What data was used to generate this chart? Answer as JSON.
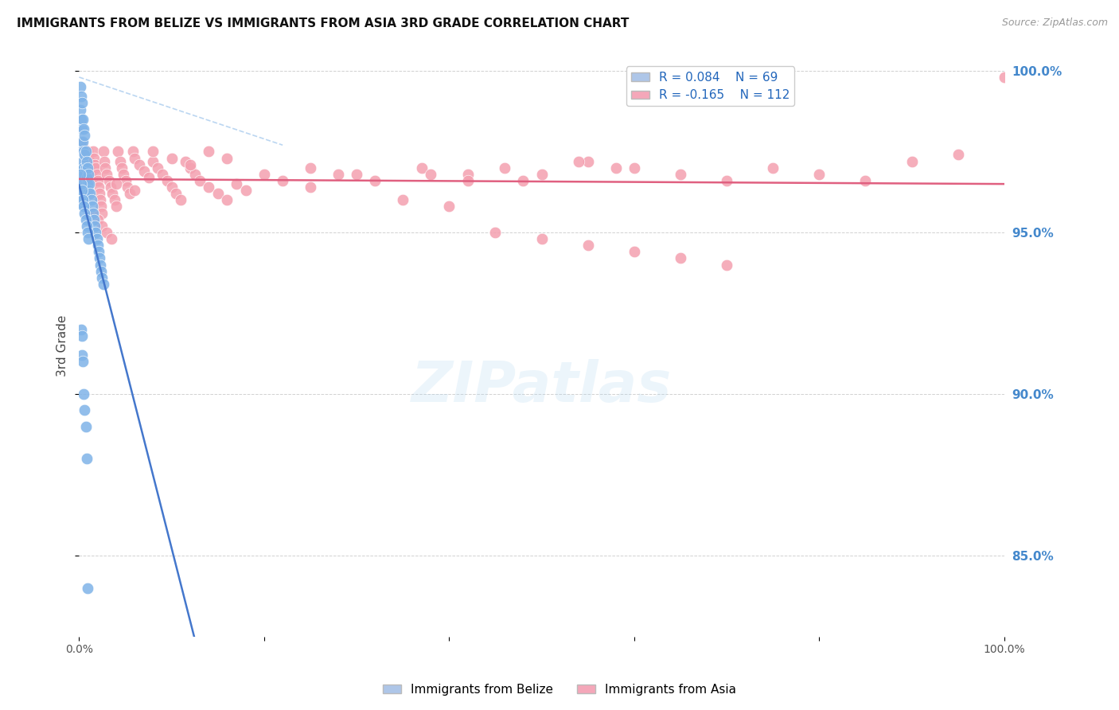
{
  "title": "IMMIGRANTS FROM BELIZE VS IMMIGRANTS FROM ASIA 3RD GRADE CORRELATION CHART",
  "source": "Source: ZipAtlas.com",
  "ylabel": "3rd Grade",
  "right_yticks": [
    "85.0%",
    "90.0%",
    "95.0%",
    "100.0%"
  ],
  "right_ytick_vals": [
    0.85,
    0.9,
    0.95,
    1.0
  ],
  "belize_color": "#7fb3e8",
  "asia_color": "#f4a0b0",
  "belize_trend_color": "#4477cc",
  "asia_trend_color": "#e06080",
  "dash_color": "#aaccee",
  "watermark": "ZIPatlas",
  "belize_x": [
    0.001,
    0.001,
    0.002,
    0.002,
    0.002,
    0.002,
    0.003,
    0.003,
    0.003,
    0.003,
    0.003,
    0.004,
    0.004,
    0.004,
    0.004,
    0.004,
    0.005,
    0.005,
    0.005,
    0.005,
    0.005,
    0.006,
    0.006,
    0.006,
    0.006,
    0.007,
    0.007,
    0.007,
    0.008,
    0.008,
    0.009,
    0.009,
    0.01,
    0.01,
    0.011,
    0.012,
    0.013,
    0.014,
    0.015,
    0.016,
    0.017,
    0.018,
    0.019,
    0.02,
    0.021,
    0.022,
    0.023,
    0.024,
    0.025,
    0.026,
    0.001,
    0.002,
    0.003,
    0.004,
    0.005,
    0.006,
    0.007,
    0.008,
    0.009,
    0.01,
    0.002,
    0.003,
    0.003,
    0.004,
    0.005,
    0.006,
    0.007,
    0.008,
    0.009
  ],
  "belize_y": [
    0.995,
    0.988,
    0.992,
    0.985,
    0.978,
    0.97,
    0.99,
    0.982,
    0.975,
    0.968,
    0.963,
    0.985,
    0.978,
    0.972,
    0.966,
    0.96,
    0.982,
    0.975,
    0.97,
    0.965,
    0.958,
    0.98,
    0.974,
    0.968,
    0.963,
    0.975,
    0.97,
    0.965,
    0.972,
    0.967,
    0.97,
    0.965,
    0.968,
    0.963,
    0.965,
    0.962,
    0.96,
    0.958,
    0.956,
    0.954,
    0.952,
    0.95,
    0.948,
    0.946,
    0.944,
    0.942,
    0.94,
    0.938,
    0.936,
    0.934,
    0.968,
    0.965,
    0.963,
    0.96,
    0.958,
    0.956,
    0.954,
    0.952,
    0.95,
    0.948,
    0.92,
    0.918,
    0.912,
    0.91,
    0.9,
    0.895,
    0.89,
    0.88,
    0.84
  ],
  "asia_x": [
    0.003,
    0.005,
    0.006,
    0.007,
    0.008,
    0.009,
    0.01,
    0.01,
    0.011,
    0.012,
    0.013,
    0.014,
    0.015,
    0.016,
    0.017,
    0.018,
    0.019,
    0.02,
    0.021,
    0.022,
    0.023,
    0.024,
    0.025,
    0.026,
    0.027,
    0.028,
    0.03,
    0.032,
    0.034,
    0.036,
    0.038,
    0.04,
    0.042,
    0.044,
    0.046,
    0.048,
    0.05,
    0.052,
    0.055,
    0.058,
    0.06,
    0.065,
    0.07,
    0.075,
    0.08,
    0.085,
    0.09,
    0.095,
    0.1,
    0.105,
    0.11,
    0.115,
    0.12,
    0.125,
    0.13,
    0.14,
    0.15,
    0.16,
    0.17,
    0.18,
    0.2,
    0.22,
    0.25,
    0.28,
    0.32,
    0.37,
    0.42,
    0.48,
    0.55,
    0.6,
    0.65,
    0.7,
    0.75,
    0.8,
    0.85,
    0.9,
    0.95,
    1.0,
    0.04,
    0.06,
    0.08,
    0.1,
    0.12,
    0.14,
    0.16,
    0.38,
    0.42,
    0.46,
    0.5,
    0.54,
    0.58,
    0.25,
    0.3,
    0.35,
    0.4,
    0.45,
    0.5,
    0.55,
    0.6,
    0.65,
    0.7,
    0.005,
    0.01,
    0.015,
    0.02,
    0.025,
    0.03,
    0.035
  ],
  "asia_y": [
    0.978,
    0.976,
    0.974,
    0.972,
    0.97,
    0.975,
    0.973,
    0.968,
    0.972,
    0.97,
    0.968,
    0.966,
    0.975,
    0.973,
    0.971,
    0.97,
    0.968,
    0.966,
    0.964,
    0.962,
    0.96,
    0.958,
    0.956,
    0.975,
    0.972,
    0.97,
    0.968,
    0.966,
    0.964,
    0.962,
    0.96,
    0.958,
    0.975,
    0.972,
    0.97,
    0.968,
    0.966,
    0.964,
    0.962,
    0.975,
    0.973,
    0.971,
    0.969,
    0.967,
    0.972,
    0.97,
    0.968,
    0.966,
    0.964,
    0.962,
    0.96,
    0.972,
    0.97,
    0.968,
    0.966,
    0.964,
    0.962,
    0.96,
    0.965,
    0.963,
    0.968,
    0.966,
    0.964,
    0.968,
    0.966,
    0.97,
    0.968,
    0.966,
    0.972,
    0.97,
    0.968,
    0.966,
    0.97,
    0.968,
    0.966,
    0.972,
    0.974,
    0.998,
    0.965,
    0.963,
    0.975,
    0.973,
    0.971,
    0.975,
    0.973,
    0.968,
    0.966,
    0.97,
    0.968,
    0.972,
    0.97,
    0.97,
    0.968,
    0.96,
    0.958,
    0.95,
    0.948,
    0.946,
    0.944,
    0.942,
    0.94,
    0.966,
    0.964,
    0.956,
    0.954,
    0.952,
    0.95,
    0.948
  ],
  "xlim": [
    0.0,
    1.0
  ],
  "ylim": [
    0.825,
    1.005
  ],
  "grid_color": "#cccccc",
  "background_color": "#ffffff"
}
